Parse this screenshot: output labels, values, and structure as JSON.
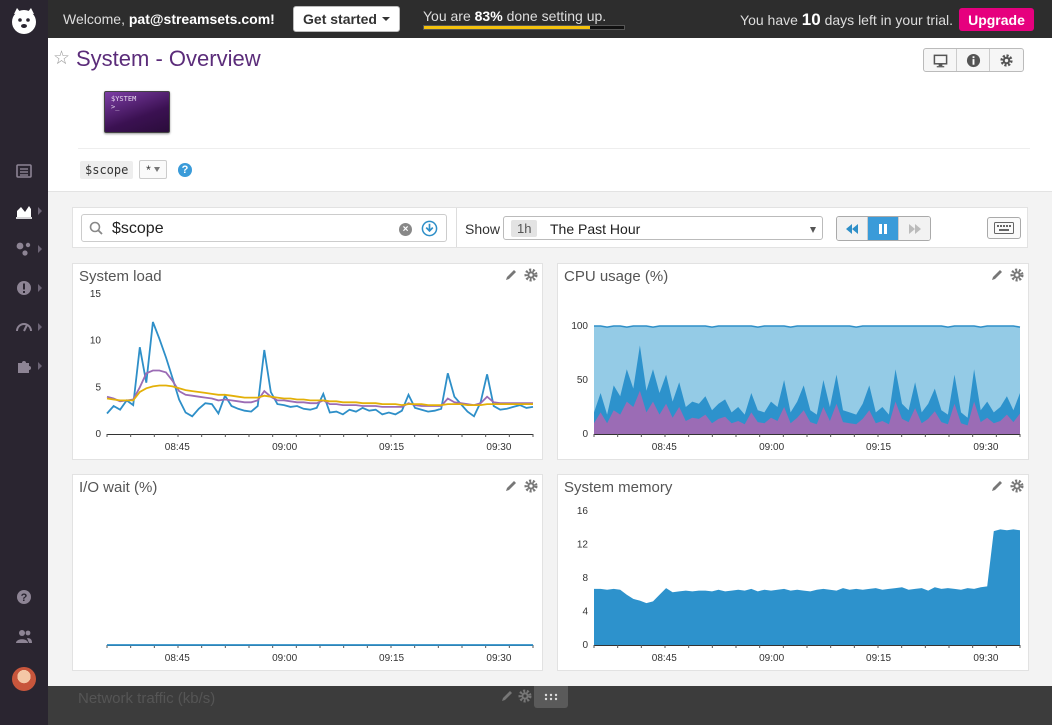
{
  "topbar": {
    "welcome_prefix": "Welcome,",
    "user_email": "pat@streamsets.com!",
    "get_started_label": "Get started",
    "progress_prefix": "You are",
    "progress_percent_text": "83%",
    "progress_suffix": "done setting up.",
    "progress_value": 0.83,
    "trial_prefix": "You have",
    "trial_days": "10",
    "trial_suffix": "days left in your trial.",
    "upgrade_label": "Upgrade",
    "colors": {
      "upgrade": "#e6007e",
      "progress": "#f4c20d"
    }
  },
  "sidebar": {
    "items": [
      {
        "icon": "list-icon"
      },
      {
        "icon": "area-chart-icon"
      },
      {
        "icon": "infrastructure-icon"
      },
      {
        "icon": "alert-icon"
      },
      {
        "icon": "speedometer-icon"
      },
      {
        "icon": "puzzle-icon"
      },
      {
        "icon": "help-icon"
      },
      {
        "icon": "team-icon"
      },
      {
        "icon": "avatar"
      }
    ]
  },
  "header": {
    "title": "System - Overview",
    "thumbnail_text_line1": "$YSTEM",
    "thumbnail_text_line2": ">_",
    "scope_label": "$scope",
    "scope_value": "*",
    "tools": [
      "display-icon",
      "info-icon",
      "gear-icon"
    ]
  },
  "controls": {
    "search_value": "$scope",
    "show_label": "Show",
    "time_badge": "1h",
    "time_label": "The Past Hour"
  },
  "x_ticks": [
    "08:45",
    "09:00",
    "09:15",
    "09:30"
  ],
  "panels": {
    "system_load": {
      "title": "System load"
    },
    "cpu_usage": {
      "title": "CPU usage (%)"
    },
    "io_wait": {
      "title": "I/O wait (%)"
    },
    "system_memory": {
      "title": "System memory"
    },
    "network_traffic": {
      "title": "Network traffic (kb/s)"
    }
  },
  "chart_data": [
    {
      "type": "line",
      "title": "System load",
      "ylim": [
        0,
        15
      ],
      "yticks": [
        0,
        5,
        10,
        15
      ],
      "x_ticks": [
        "08:45",
        "09:00",
        "09:15",
        "09:30"
      ],
      "series": [
        {
          "color": "#2e8fc8",
          "values": [
            2.2,
            3.0,
            2.6,
            3.6,
            3.1,
            9.3,
            5.5,
            12.0,
            10.2,
            8.2,
            6.0,
            3.7,
            2.3,
            1.9,
            2.7,
            3.3,
            3.2,
            2.2,
            4.1,
            3.0,
            2.7,
            2.5,
            2.4,
            3.0,
            9.0,
            4.5,
            3.2,
            3.1,
            2.9,
            3.0,
            2.7,
            2.6,
            2.8,
            4.3,
            2.3,
            2.4,
            2.1,
            2.6,
            2.4,
            2.8,
            2.5,
            2.6,
            2.1,
            2.3,
            2.1,
            2.5,
            4.2,
            2.8,
            2.6,
            2.4,
            2.5,
            2.7,
            6.5,
            4.0,
            3.2,
            2.4,
            1.9,
            3.4,
            6.4,
            3.0,
            2.6,
            2.7,
            2.9,
            3.1,
            2.8,
            2.9
          ]
        },
        {
          "color": "#9b6cb5",
          "values": [
            4.0,
            3.8,
            3.5,
            3.6,
            3.7,
            5.0,
            6.5,
            6.8,
            6.8,
            6.6,
            5.7,
            4.6,
            4.2,
            4.1,
            4.0,
            3.9,
            3.8,
            3.6,
            3.7,
            3.6,
            3.5,
            3.4,
            3.4,
            3.6,
            4.6,
            4.0,
            3.6,
            3.6,
            3.5,
            3.4,
            3.4,
            3.3,
            3.3,
            3.6,
            3.2,
            3.2,
            3.1,
            3.1,
            3.1,
            3.0,
            3.0,
            3.0,
            2.9,
            2.9,
            2.9,
            2.9,
            3.3,
            3.1,
            3.0,
            3.0,
            3.0,
            3.0,
            3.8,
            3.4,
            3.3,
            3.2,
            3.1,
            3.3,
            4.0,
            3.4,
            3.3,
            3.3,
            3.3,
            3.3,
            3.3,
            3.3
          ]
        },
        {
          "color": "#e3b008",
          "values": [
            3.8,
            3.7,
            3.6,
            3.6,
            3.6,
            4.5,
            4.9,
            5.1,
            5.2,
            5.2,
            5.1,
            4.9,
            4.7,
            4.6,
            4.5,
            4.4,
            4.3,
            4.2,
            4.2,
            4.1,
            4.0,
            3.9,
            3.9,
            3.9,
            4.1,
            4.0,
            3.9,
            3.8,
            3.8,
            3.7,
            3.7,
            3.6,
            3.6,
            3.6,
            3.5,
            3.5,
            3.4,
            3.4,
            3.4,
            3.3,
            3.3,
            3.3,
            3.2,
            3.2,
            3.2,
            3.1,
            3.2,
            3.2,
            3.2,
            3.1,
            3.1,
            3.1,
            3.2,
            3.2,
            3.2,
            3.1,
            3.1,
            3.1,
            3.2,
            3.2,
            3.2,
            3.2,
            3.2,
            3.2,
            3.2,
            3.2
          ]
        }
      ]
    },
    {
      "type": "area",
      "title": "CPU usage (%)",
      "ylim": [
        0,
        100
      ],
      "yticks": [
        0,
        50,
        100
      ],
      "x_ticks": [
        "08:45",
        "09:00",
        "09:15",
        "09:30"
      ],
      "series": [
        {
          "color": "#94cbe6",
          "stroke": "#2e8fc8",
          "values": [
            100,
            100,
            99,
            100,
            100,
            99,
            100,
            100,
            100,
            99,
            100,
            100,
            100,
            100,
            100,
            100,
            100,
            100,
            99,
            100,
            100,
            100,
            100,
            100,
            100,
            99,
            100,
            100,
            100,
            100,
            99,
            100,
            100,
            100,
            100,
            100,
            100,
            100,
            100,
            100,
            99,
            100,
            100,
            100,
            100,
            100,
            100,
            100,
            100,
            100,
            100,
            100,
            100,
            100,
            99,
            100,
            100,
            100,
            100,
            99,
            100,
            100,
            100,
            100,
            100,
            99
          ]
        },
        {
          "color": "#2d92cc",
          "values": [
            20,
            38,
            18,
            45,
            35,
            60,
            42,
            82,
            40,
            60,
            38,
            55,
            30,
            48,
            25,
            30,
            28,
            35,
            22,
            28,
            32,
            20,
            25,
            18,
            38,
            22,
            20,
            30,
            25,
            50,
            20,
            30,
            45,
            22,
            18,
            50,
            25,
            55,
            22,
            20,
            18,
            28,
            45,
            20,
            25,
            18,
            60,
            28,
            22,
            48,
            20,
            28,
            42,
            22,
            18,
            55,
            20,
            15,
            60,
            22,
            30,
            20,
            25,
            35,
            22,
            38
          ]
        },
        {
          "color": "#9b6cb5",
          "values": [
            10,
            20,
            10,
            22,
            18,
            30,
            25,
            40,
            20,
            30,
            18,
            28,
            15,
            25,
            12,
            15,
            14,
            18,
            10,
            14,
            16,
            10,
            12,
            9,
            20,
            11,
            10,
            15,
            12,
            25,
            10,
            15,
            22,
            11,
            9,
            25,
            12,
            28,
            11,
            10,
            9,
            14,
            22,
            10,
            12,
            9,
            30,
            14,
            11,
            24,
            10,
            14,
            21,
            11,
            9,
            28,
            10,
            8,
            30,
            11,
            15,
            10,
            12,
            18,
            11,
            19
          ]
        }
      ]
    },
    {
      "type": "line",
      "title": "I/O wait (%)",
      "x_ticks": [
        "08:45",
        "09:00",
        "09:15",
        "09:30"
      ],
      "series": [
        {
          "color": "#2e8fc8",
          "values": [
            0,
            0,
            0,
            0,
            0,
            0,
            0,
            0,
            0,
            0
          ]
        }
      ]
    },
    {
      "type": "area",
      "title": "System memory",
      "ylim": [
        0,
        16
      ],
      "yticks": [
        0,
        4,
        8,
        12,
        16
      ],
      "x_ticks": [
        "08:45",
        "09:00",
        "09:15",
        "09:30"
      ],
      "series": [
        {
          "color": "#2d92cc",
          "values": [
            6.7,
            6.7,
            6.6,
            6.7,
            6.6,
            6.0,
            5.5,
            5.3,
            5.0,
            5.2,
            6.0,
            6.8,
            6.3,
            6.4,
            6.5,
            6.4,
            6.5,
            6.5,
            6.4,
            6.6,
            6.4,
            6.5,
            6.6,
            6.5,
            6.7,
            6.4,
            6.6,
            6.5,
            6.6,
            6.7,
            6.5,
            6.6,
            6.5,
            6.4,
            6.6,
            6.7,
            6.6,
            6.5,
            6.8,
            6.6,
            6.7,
            6.6,
            6.7,
            6.8,
            6.6,
            6.7,
            6.8,
            6.9,
            6.6,
            6.7,
            6.8,
            6.5,
            6.9,
            6.7,
            6.8,
            6.7,
            6.6,
            6.8,
            6.7,
            6.9,
            7.0,
            13.6,
            13.8,
            13.7,
            13.8,
            13.7
          ]
        }
      ]
    }
  ]
}
